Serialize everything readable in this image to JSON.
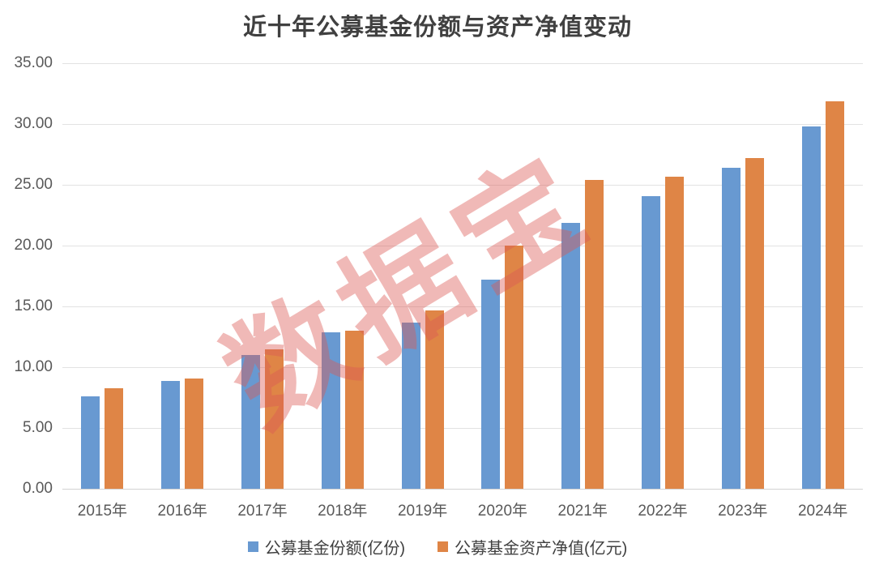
{
  "chart_data": {
    "type": "bar",
    "title": "近十年公募基金份额与资产净值变动",
    "categories": [
      "2015年",
      "2016年",
      "2017年",
      "2018年",
      "2019年",
      "2020年",
      "2021年",
      "2022年",
      "2023年",
      "2024年"
    ],
    "series": [
      {
        "name": "公募基金份额(亿份)",
        "key": "fund-shares",
        "color": "#6899D1",
        "values": [
          7.6,
          8.9,
          11.0,
          12.9,
          13.7,
          17.2,
          21.9,
          24.1,
          26.4,
          29.8
        ]
      },
      {
        "name": "公募基金资产净值(亿元)",
        "key": "net-asset-value",
        "color": "#DF8546",
        "values": [
          8.3,
          9.1,
          11.5,
          13.0,
          14.7,
          20.0,
          25.4,
          25.7,
          27.2,
          31.9
        ]
      }
    ],
    "xlabel": "",
    "ylabel": "",
    "ylim": [
      0,
      35
    ],
    "ytick_step": 5,
    "ytick_labels_top_to_bottom": [
      "35.00",
      "30.00",
      "25.00",
      "20.00",
      "15.00",
      "10.00",
      "5.00",
      "0.00"
    ],
    "grid": true,
    "legend_position": "bottom",
    "watermark_text": "数据宝",
    "watermark_color": "#DC5A55"
  }
}
